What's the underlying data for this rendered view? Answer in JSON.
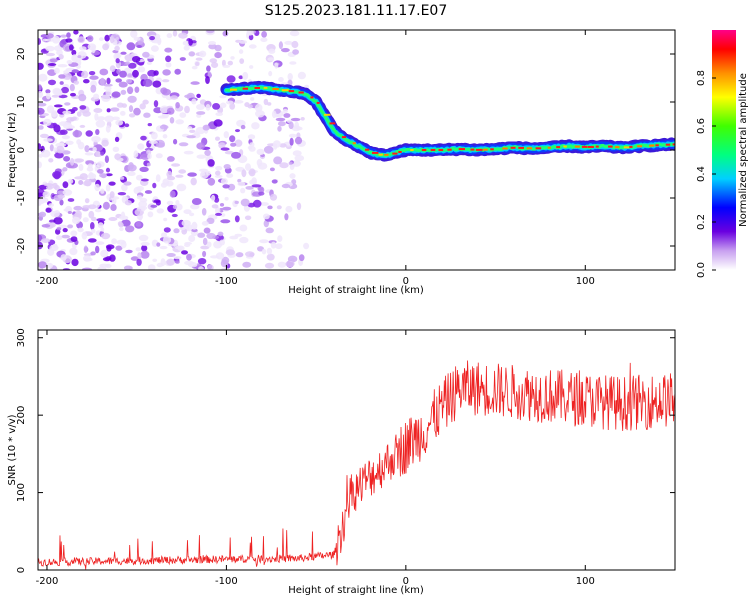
{
  "title": "S125.2023.181.11.17.E07",
  "chart_data": [
    {
      "type": "heatmap",
      "xlabel": "Height of straight line (km)",
      "ylabel": "Frequency (Hz)",
      "xlim": [
        -205,
        150
      ],
      "ylim": [
        -25,
        25
      ],
      "xticks": [
        -200,
        -100,
        0,
        100
      ],
      "yticks": [
        -20,
        -10,
        0,
        10,
        20
      ],
      "colorbar": {
        "label": "Normalized spectral amplitude",
        "range": [
          0,
          1
        ],
        "ticks": [
          "0.0",
          "0.2",
          "0.4",
          "0.6",
          "0.8"
        ]
      },
      "noise_region_x": [
        -205,
        -55
      ],
      "ridge": {
        "x": [
          -100,
          -90,
          -80,
          -70,
          -60,
          -55,
          -50,
          -45,
          -40,
          -35,
          -30,
          -25,
          -20,
          -15,
          -10,
          -5,
          0,
          10,
          20,
          30,
          40,
          50,
          60,
          70,
          80,
          90,
          100,
          110,
          120,
          130,
          140,
          150
        ],
        "y": [
          12.5,
          12.8,
          13,
          12.5,
          12,
          11.5,
          10,
          7,
          4,
          2.5,
          1.5,
          0.5,
          -0.5,
          -1,
          -1,
          -0.5,
          0,
          0,
          0,
          0.2,
          0,
          0.2,
          0.5,
          0.3,
          0.5,
          0.8,
          0.6,
          0.8,
          0.5,
          0.8,
          1,
          1.2
        ],
        "peak_amplitude": 0.95
      }
    },
    {
      "type": "line",
      "xlabel": "Height of straight line (km)",
      "ylabel": "SNR (10 * v/v)",
      "xlim": [
        -205,
        150
      ],
      "ylim": [
        0,
        310
      ],
      "xticks": [
        -200,
        -100,
        0,
        100
      ],
      "yticks": [
        0,
        100,
        200,
        300
      ],
      "color": "#ee2222",
      "trend": {
        "x": [
          -205,
          -150,
          -100,
          -60,
          -40,
          -35,
          -30,
          -20,
          -10,
          0,
          10,
          20,
          30,
          40,
          60,
          80,
          100,
          120,
          150
        ],
        "y": [
          10,
          12,
          14,
          15,
          20,
          60,
          100,
          120,
          140,
          160,
          180,
          210,
          235,
          235,
          230,
          225,
          220,
          215,
          220
        ]
      }
    }
  ]
}
